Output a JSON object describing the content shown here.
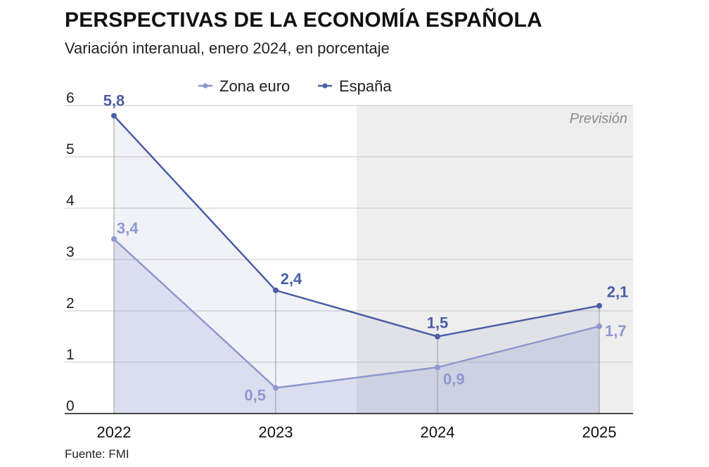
{
  "title": "PERSPECTIVAS DE LA ECONOMÍA ESPAÑOLA",
  "subtitle": "Variación interanual, enero 2024, en porcentaje",
  "source": "Fuente: FMI",
  "forecast_label": "Previsión",
  "colors": {
    "zona_euro": "#8f97cf",
    "espana": "#4b5ea6",
    "forecast_bg": "#eeeeee",
    "grid": "#c8c8c8"
  },
  "chart_data": {
    "type": "line",
    "categories": [
      "2022",
      "2023",
      "2024",
      "2025"
    ],
    "series": [
      {
        "name": "Zona euro",
        "values": [
          3.4,
          0.5,
          0.9,
          1.7
        ],
        "labels": [
          "3,4",
          "0,5",
          "0,9",
          "1,7"
        ]
      },
      {
        "name": "España",
        "values": [
          5.8,
          2.4,
          1.5,
          2.1
        ],
        "labels": [
          "5,8",
          "2,4",
          "1,5",
          "2,1"
        ]
      }
    ],
    "yticks": [
      "0",
      "1",
      "2",
      "3",
      "4",
      "5",
      "6"
    ],
    "ylim": [
      0,
      6
    ],
    "forecast_from": "2024",
    "legend_position": "top-center",
    "grid": true
  }
}
